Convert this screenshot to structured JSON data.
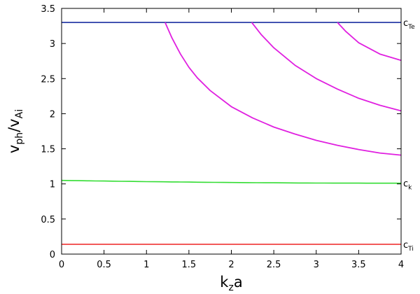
{
  "chart_data": {
    "type": "line",
    "xlabel": {
      "main": "k",
      "sub": "z",
      "tail": "a"
    },
    "ylabel": {
      "a": "v",
      "a_sub": "ph",
      "slash": "/v",
      "b_sub": "Ai"
    },
    "xlim": [
      0,
      4
    ],
    "ylim": [
      0,
      3.5
    ],
    "x_ticks": [
      "0",
      "0.5",
      "1",
      "1.5",
      "2",
      "2.5",
      "3",
      "3.5",
      "4"
    ],
    "y_ticks": [
      "0",
      "0.5",
      "1",
      "1.5",
      "2",
      "2.5",
      "3",
      "3.5"
    ],
    "grid": false,
    "legend": "none",
    "reference_lines": [
      {
        "label": "c",
        "sub": "Te",
        "y": 3.3,
        "color": "#1a2ea0"
      },
      {
        "label": "c",
        "sub": "k",
        "y_start": 1.05,
        "y_end": 1.01,
        "color": "#33dd33"
      },
      {
        "label": "c",
        "sub": "Ti",
        "y": 0.14,
        "color": "#ee2222"
      }
    ],
    "series": [
      {
        "color": "#e020e0",
        "x": [
          1.22,
          1.3,
          1.4,
          1.5,
          1.6,
          1.75,
          2.0,
          2.25,
          2.5,
          2.75,
          3.0,
          3.25,
          3.5,
          3.75,
          4.0
        ],
        "y": [
          3.3,
          3.08,
          2.85,
          2.66,
          2.51,
          2.33,
          2.1,
          1.94,
          1.81,
          1.71,
          1.62,
          1.55,
          1.49,
          1.44,
          1.41
        ]
      },
      {
        "color": "#e020e0",
        "x": [
          2.24,
          2.35,
          2.5,
          2.75,
          3.0,
          3.25,
          3.5,
          3.75,
          4.0
        ],
        "y": [
          3.3,
          3.13,
          2.94,
          2.69,
          2.5,
          2.35,
          2.22,
          2.12,
          2.04
        ]
      },
      {
        "color": "#e020e0",
        "x": [
          3.25,
          3.35,
          3.5,
          3.75,
          4.0
        ],
        "y": [
          3.3,
          3.17,
          3.01,
          2.85,
          2.76
        ]
      }
    ]
  }
}
